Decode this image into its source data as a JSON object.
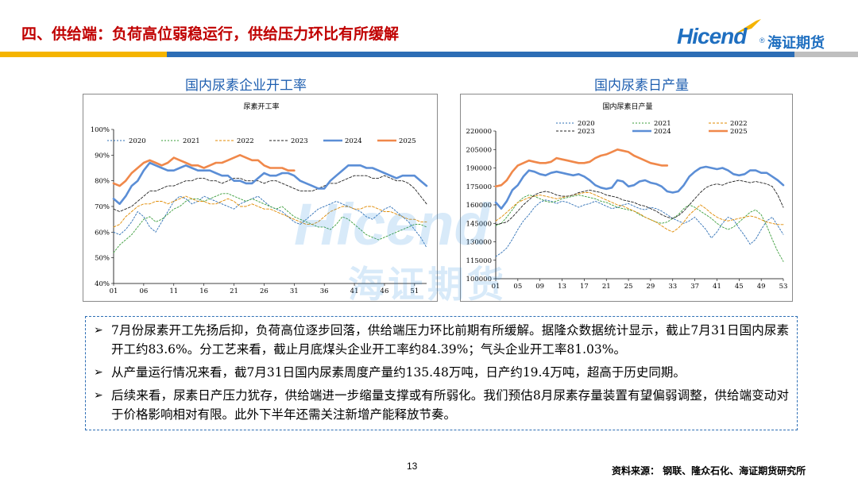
{
  "header": {
    "title": "四、供给端：负荷高位弱稳运行，供给压力环比有所缓解",
    "logo_text": "Hicend",
    "logo_reg": "®",
    "logo_cn": "海证期货",
    "bar_colors": [
      "#f5b400",
      "#2c6db5",
      "#bfbfbf"
    ]
  },
  "watermark": {
    "text": "Hicend",
    "cn": "海证期货"
  },
  "chart_data": [
    {
      "type": "line",
      "caption": "国内尿素企业开工率",
      "title": "尿素开工率",
      "ylim": [
        40,
        100
      ],
      "yticks": [
        "40%",
        "50%",
        "60%",
        "70%",
        "80%",
        "90%",
        "100%"
      ],
      "xticks": [
        "01",
        "06",
        "11",
        "16",
        "21",
        "26",
        "31",
        "36",
        "41",
        "46",
        "51"
      ],
      "x_range": [
        1,
        53
      ],
      "series": [
        {
          "name": "2020",
          "color": "#2e6fb5",
          "dash": "2,2",
          "width": 0.9,
          "values": [
            60,
            59,
            61,
            64,
            68,
            66,
            62,
            60,
            64,
            68,
            72,
            74,
            73,
            71,
            72,
            74,
            73,
            72,
            71,
            70,
            69,
            71,
            72,
            73,
            74,
            72,
            70,
            69,
            68,
            66,
            64,
            63,
            65,
            67,
            69,
            70,
            71,
            72,
            71,
            70,
            69,
            68,
            66,
            65,
            67,
            69,
            70,
            68,
            66,
            64,
            61,
            58,
            54
          ]
        },
        {
          "name": "2021",
          "color": "#3a9d3a",
          "dash": "2,2",
          "width": 0.9,
          "values": [
            52,
            55,
            57,
            59,
            62,
            65,
            66,
            64,
            65,
            67,
            69,
            70,
            72,
            73,
            73,
            72,
            73,
            74,
            75,
            75,
            74,
            73,
            72,
            73,
            72,
            71,
            70,
            69,
            70,
            68,
            66,
            65,
            64,
            63,
            62,
            62,
            61,
            63,
            66,
            65,
            63,
            61,
            59,
            58,
            57,
            58,
            59,
            60,
            61,
            62,
            63,
            63,
            62
          ]
        },
        {
          "name": "2022",
          "color": "#e08a00",
          "dash": "3,2",
          "width": 0.9,
          "values": [
            62,
            63,
            66,
            68,
            70,
            71,
            71,
            72,
            72,
            71,
            72,
            73,
            74,
            73,
            72,
            72,
            71,
            71,
            72,
            73,
            72,
            70,
            70,
            71,
            70,
            69,
            69,
            68,
            67,
            66,
            65,
            64,
            63,
            63,
            64,
            66,
            68,
            69,
            70,
            70,
            69,
            69,
            70,
            70,
            69,
            68,
            68,
            67,
            66,
            65,
            65,
            64,
            64
          ]
        },
        {
          "name": "2023",
          "color": "#222222",
          "dash": "3,2",
          "width": 0.9,
          "values": [
            69,
            68,
            69,
            70,
            72,
            74,
            76,
            76,
            77,
            78,
            78,
            79,
            80,
            80,
            81,
            81,
            80,
            80,
            79,
            80,
            81,
            81,
            80,
            80,
            80,
            79,
            80,
            80,
            79,
            78,
            77,
            76,
            76,
            76,
            77,
            78,
            79,
            79,
            80,
            81,
            82,
            82,
            82,
            81,
            81,
            82,
            81,
            80,
            80,
            79,
            77,
            74,
            71
          ]
        },
        {
          "name": "2024",
          "color": "#5b8ed6",
          "dash": "",
          "width": 2.6,
          "values": [
            73,
            71,
            74,
            78,
            80,
            84,
            87,
            86,
            85,
            84,
            84,
            85,
            86,
            85,
            84,
            84,
            84,
            83,
            82,
            82,
            80,
            80,
            79,
            79,
            81,
            83,
            82,
            82,
            83,
            83,
            82,
            80,
            79,
            78,
            77,
            77,
            80,
            82,
            84,
            86,
            86,
            86,
            85,
            85,
            84,
            83,
            82,
            81,
            82,
            82,
            82,
            80,
            78
          ]
        },
        {
          "name": "2025",
          "color": "#f0884a",
          "dash": "",
          "width": 2.6,
          "values": [
            79,
            78,
            80,
            83,
            85,
            87,
            88,
            87,
            86,
            87,
            89,
            88,
            87,
            86,
            86,
            85,
            86,
            87,
            87,
            88,
            89,
            90,
            89,
            88,
            88,
            86,
            85,
            85,
            85,
            84,
            84,
            null,
            null,
            null,
            null,
            null,
            null,
            null,
            null,
            null,
            null,
            null,
            null,
            null,
            null,
            null,
            null,
            null,
            null,
            null,
            null,
            null,
            null
          ]
        }
      ]
    },
    {
      "type": "line",
      "caption": "国内尿素日产量",
      "title": "国内尿素日产量",
      "ylim": [
        100000,
        220000
      ],
      "yticks": [
        "100000",
        "115000",
        "130000",
        "145000",
        "160000",
        "175000",
        "190000",
        "205000",
        "220000"
      ],
      "xticks": [
        "01",
        "05",
        "09",
        "13",
        "17",
        "21",
        "25",
        "29",
        "33",
        "37",
        "41",
        "45",
        "49",
        "53"
      ],
      "x_range": [
        1,
        53
      ],
      "series": [
        {
          "name": "2020",
          "color": "#2e6fb5",
          "dash": "2,2",
          "width": 0.9,
          "values": [
            118000,
            121000,
            125000,
            132000,
            140000,
            147000,
            152000,
            158000,
            162000,
            164000,
            163000,
            161000,
            163000,
            162000,
            160000,
            158000,
            160000,
            161000,
            163000,
            161000,
            159000,
            157000,
            158000,
            160000,
            161000,
            159000,
            157000,
            156000,
            158000,
            157000,
            155000,
            152000,
            149000,
            147000,
            145000,
            147000,
            150000,
            145000,
            140000,
            133000,
            138000,
            145000,
            150000,
            148000,
            141000,
            135000,
            128000,
            132000,
            140000,
            147000,
            150000,
            143000,
            136000
          ]
        },
        {
          "name": "2021",
          "color": "#3a9d3a",
          "dash": "2,2",
          "width": 0.9,
          "values": [
            143000,
            145000,
            150000,
            156000,
            162000,
            166000,
            168000,
            167000,
            165000,
            163000,
            162000,
            163000,
            165000,
            166000,
            167000,
            168000,
            167000,
            166000,
            165000,
            163000,
            162000,
            160000,
            158000,
            157000,
            156000,
            155000,
            152000,
            150000,
            148000,
            146000,
            145000,
            146000,
            149000,
            152000,
            157000,
            160000,
            158000,
            155000,
            152000,
            149000,
            145000,
            142000,
            140000,
            142000,
            146000,
            150000,
            154000,
            156000,
            152000,
            143000,
            132000,
            122000,
            114000
          ]
        },
        {
          "name": "2022",
          "color": "#e08a00",
          "dash": "3,2",
          "width": 0.9,
          "values": [
            147000,
            150000,
            154000,
            158000,
            162000,
            164000,
            166000,
            167000,
            168000,
            167000,
            166000,
            165000,
            166000,
            167000,
            168000,
            169000,
            170000,
            170000,
            168000,
            166000,
            164000,
            162000,
            160000,
            159000,
            157000,
            155000,
            153000,
            150000,
            148000,
            146000,
            143000,
            140000,
            138000,
            141000,
            146000,
            152000,
            156000,
            160000,
            157000,
            153000,
            150000,
            148000,
            147000,
            148000,
            149000,
            150000,
            151000,
            150000,
            148000,
            146000,
            145000,
            144000,
            144000
          ]
        },
        {
          "name": "2023",
          "color": "#222222",
          "dash": "3,2",
          "width": 0.9,
          "values": [
            144000,
            145000,
            146000,
            150000,
            155000,
            160000,
            164000,
            168000,
            170000,
            171000,
            170000,
            168000,
            167000,
            167000,
            168000,
            170000,
            171000,
            172000,
            171000,
            170000,
            168000,
            167000,
            166000,
            164000,
            163000,
            162000,
            160000,
            159000,
            157000,
            155000,
            152000,
            150000,
            149000,
            151000,
            155000,
            160000,
            165000,
            170000,
            174000,
            176000,
            177000,
            176000,
            178000,
            179000,
            180000,
            179000,
            178000,
            179000,
            178000,
            177000,
            175000,
            168000,
            158000
          ]
        },
        {
          "name": "2024",
          "color": "#5b8ed6",
          "dash": "",
          "width": 2.6,
          "values": [
            162000,
            157000,
            163000,
            172000,
            176000,
            183000,
            188000,
            187000,
            185000,
            184000,
            186000,
            187000,
            186000,
            185000,
            184000,
            185000,
            183000,
            180000,
            176000,
            174000,
            173000,
            174000,
            180000,
            179000,
            175000,
            176000,
            179000,
            180000,
            178000,
            177000,
            175000,
            171000,
            170000,
            171000,
            176000,
            183000,
            187000,
            190000,
            191000,
            190000,
            189000,
            190000,
            188000,
            185000,
            184000,
            185000,
            188000,
            188000,
            186000,
            186000,
            183000,
            180000,
            176000
          ]
        },
        {
          "name": "2025",
          "color": "#f0884a",
          "dash": "",
          "width": 2.6,
          "values": [
            175000,
            176000,
            180000,
            187000,
            192000,
            194000,
            196000,
            195000,
            194000,
            194000,
            195000,
            198000,
            197000,
            196000,
            195000,
            194000,
            194000,
            195000,
            198000,
            200000,
            201000,
            203000,
            205000,
            204000,
            203000,
            200000,
            198000,
            196000,
            194000,
            193000,
            192000,
            192000,
            null,
            null,
            null,
            null,
            null,
            null,
            null,
            null,
            null,
            null,
            null,
            null,
            null,
            null,
            null,
            null,
            null,
            null,
            null,
            null,
            null
          ]
        }
      ]
    }
  ],
  "bullets": [
    "7月份尿素开工先扬后抑，负荷高位逐步回落，供给端压力环比前期有所缓解。据隆众数据统计显示，截止7月31日国内尿素开工约83.6%。分工艺来看，截止月底煤头企业开工率约84.39%；气头企业开工率81.03%。",
    "从产量运行情况来看，截7月31日国内尿素周度产量约135.48万吨，日产约19.4万吨，超高于历史同期。",
    "后续来看，尿素日产压力犹存，供给端进一步缩量支撑或有所弱化。我们预估8月尿素存量装置有望偏弱调整，供给端变动对于价格影响相对有限。此外下半年还需关注新增产能释放节奏。"
  ],
  "bullet_marker": "➢",
  "footer": {
    "page_number": "13",
    "source": "资料来源：  钢联、隆众石化、海证期货研究所"
  }
}
